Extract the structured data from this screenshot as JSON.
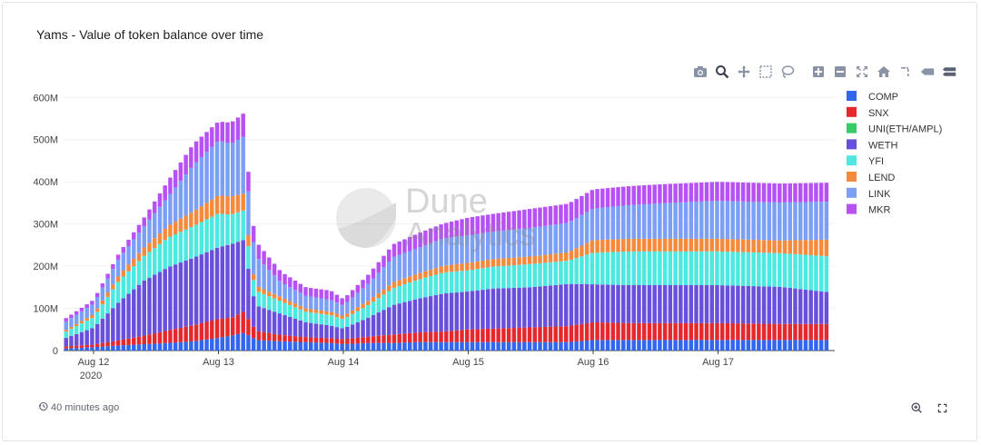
{
  "header": {
    "title": "Yams - Value of token balance over time"
  },
  "footer": {
    "updated": "40 minutes ago"
  },
  "watermark": {
    "line1": "Dune",
    "line2": "Analytics"
  },
  "modebar": [
    "camera-icon",
    "zoom-icon",
    "pan-icon",
    "box-select-icon",
    "lasso-icon",
    "zoom-in-icon",
    "zoom-out-icon",
    "autoscale-icon",
    "reset-axes-icon",
    "spike-lines-icon",
    "hover-closest-icon",
    "hover-compare-icon"
  ],
  "chart_data": {
    "type": "bar",
    "stacked": true,
    "ylim": [
      0,
      620000000
    ],
    "yticks": [
      {
        "value": 0,
        "label": "0"
      },
      {
        "value": 100000000,
        "label": "100M"
      },
      {
        "value": 200000000,
        "label": "200M"
      },
      {
        "value": 300000000,
        "label": "300M"
      },
      {
        "value": 400000000,
        "label": "400M"
      },
      {
        "value": 500000000,
        "label": "500M"
      },
      {
        "value": 600000000,
        "label": "600M"
      }
    ],
    "xticks": [
      {
        "label": "Aug 12",
        "sub": "2020",
        "t": 0
      },
      {
        "label": "Aug 13",
        "t": 1
      },
      {
        "label": "Aug 14",
        "t": 2
      },
      {
        "label": "Aug 15",
        "t": 3
      },
      {
        "label": "Aug 16",
        "t": 4
      },
      {
        "label": "Aug 17",
        "t": 5
      }
    ],
    "x_range_days": [
      -0.23,
      5.91
    ],
    "bar_interval_days": 0.0417,
    "legend_position": "top-right",
    "series": [
      {
        "name": "COMP",
        "color": "#3366ee"
      },
      {
        "name": "SNX",
        "color": "#e5282d"
      },
      {
        "name": "UNI(ETH/AMPL)",
        "color": "#33cc66"
      },
      {
        "name": "WETH",
        "color": "#6a4fdc"
      },
      {
        "name": "YFI",
        "color": "#4de8e0"
      },
      {
        "name": "LEND",
        "color": "#f58a3c"
      },
      {
        "name": "LINK",
        "color": "#7b9ff5"
      },
      {
        "name": "MKR",
        "color": "#b751f4"
      }
    ],
    "keypoints": [
      [
        -0.22,
        [
          5,
          5,
          0,
          20,
          15,
          4,
          20,
          8
        ]
      ],
      [
        0.0,
        [
          8,
          6,
          0,
          40,
          25,
          7,
          25,
          9
        ]
      ],
      [
        0.2,
        [
          12,
          12,
          0,
          90,
          50,
          13,
          40,
          12
        ]
      ],
      [
        0.4,
        [
          15,
          20,
          0,
          130,
          58,
          20,
          50,
          20
        ]
      ],
      [
        0.6,
        [
          18,
          30,
          0,
          150,
          70,
          28,
          70,
          38
        ]
      ],
      [
        0.8,
        [
          22,
          38,
          0,
          160,
          75,
          35,
          110,
          50
        ]
      ],
      [
        1.0,
        [
          30,
          45,
          0,
          170,
          80,
          43,
          130,
          45
        ]
      ],
      [
        1.1,
        [
          35,
          42,
          0,
          175,
          70,
          43,
          125,
          50
        ]
      ],
      [
        1.2,
        [
          42,
          50,
          0,
          170,
          70,
          40,
          135,
          55
        ]
      ],
      [
        1.27,
        [
          32,
          30,
          0,
          80,
          40,
          15,
          80,
          40
        ]
      ],
      [
        1.3,
        [
          25,
          22,
          0,
          60,
          35,
          12,
          70,
          35
        ]
      ],
      [
        1.5,
        [
          22,
          15,
          0,
          50,
          30,
          10,
          35,
          25
        ]
      ],
      [
        1.7,
        [
          20,
          12,
          0,
          35,
          25,
          8,
          30,
          20
        ]
      ],
      [
        1.9,
        [
          18,
          11,
          0,
          30,
          25,
          8,
          28,
          22
        ]
      ],
      [
        2.0,
        [
          15,
          12,
          0,
          25,
          22,
          8,
          25,
          15
        ]
      ],
      [
        2.2,
        [
          18,
          15,
          0,
          45,
          30,
          10,
          40,
          22
        ]
      ],
      [
        2.4,
        [
          18,
          20,
          0,
          70,
          40,
          14,
          60,
          30
        ]
      ],
      [
        2.6,
        [
          20,
          23,
          0,
          80,
          45,
          15,
          60,
          35
        ]
      ],
      [
        2.8,
        [
          20,
          25,
          0,
          90,
          50,
          16,
          65,
          35
        ]
      ],
      [
        3.0,
        [
          20,
          30,
          0,
          90,
          50,
          18,
          65,
          42
        ]
      ],
      [
        3.2,
        [
          20,
          32,
          0,
          95,
          52,
          18,
          65,
          42
        ]
      ],
      [
        3.5,
        [
          20,
          35,
          0,
          95,
          55,
          18,
          68,
          45
        ]
      ],
      [
        3.8,
        [
          20,
          38,
          0,
          100,
          55,
          20,
          70,
          45
        ]
      ],
      [
        4.0,
        [
          25,
          42,
          0,
          90,
          75,
          30,
          75,
          45
        ]
      ],
      [
        4.3,
        [
          25,
          40,
          0,
          90,
          80,
          30,
          80,
          45
        ]
      ],
      [
        4.6,
        [
          25,
          40,
          0,
          90,
          80,
          30,
          85,
          45
        ]
      ],
      [
        5.0,
        [
          25,
          40,
          0,
          90,
          80,
          30,
          90,
          45
        ]
      ],
      [
        5.5,
        [
          25,
          38,
          0,
          88,
          80,
          30,
          90,
          45
        ]
      ],
      [
        5.9,
        [
          25,
          38,
          0,
          75,
          85,
          40,
          90,
          45
        ]
      ]
    ]
  }
}
